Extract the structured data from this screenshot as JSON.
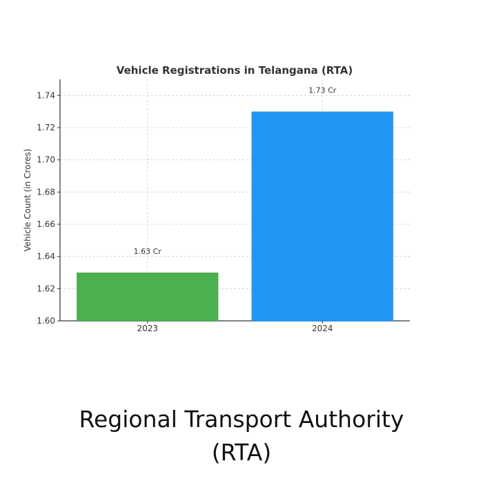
{
  "chart_data": {
    "type": "bar",
    "title": "Vehicle Registrations in Telangana (RTA)",
    "xlabel": "",
    "ylabel": "Vehicle Count (in Crores)",
    "categories": [
      "2023",
      "2024"
    ],
    "values": [
      1.63,
      1.73
    ],
    "data_labels": [
      "1.63 Cr",
      "1.73 Cr"
    ],
    "bar_colors": [
      "#4caf50",
      "#2196f3"
    ],
    "ylim": [
      1.6,
      1.75
    ],
    "yticks": [
      1.6,
      1.62,
      1.64,
      1.66,
      1.68,
      1.7,
      1.72,
      1.74
    ],
    "ytick_labels": [
      "1.60",
      "1.62",
      "1.64",
      "1.66",
      "1.68",
      "1.70",
      "1.72",
      "1.74"
    ],
    "grid": true,
    "legend": false
  },
  "caption": {
    "line1": "Regional Transport Authority",
    "line2": "(RTA)"
  }
}
